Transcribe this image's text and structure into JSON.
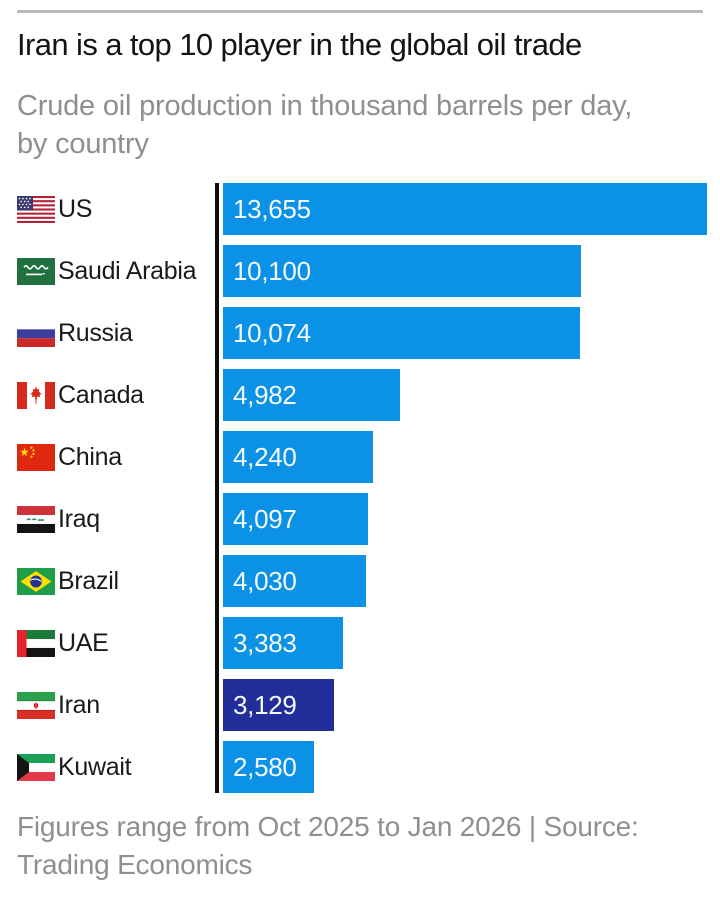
{
  "page": {
    "title": "Iran is a top 10 player in the global oil trade",
    "subtitle_lines": [
      "Crude oil production in thousand barrels per day,",
      "by country"
    ],
    "subtitle": "Crude oil production in thousand barrels per day, by country",
    "footer_lines": [
      "Figures range from Oct 2025 to Jan 2026 | Source:",
      "Trading Economics"
    ],
    "footer": "Figures range from Oct 2025 to Jan 2026 | Source: Trading Economics"
  },
  "colors": {
    "bar_blue": "#0b91e6",
    "highlight_navy": "#212d98",
    "axis_black": "#0d0d0d",
    "label_text": "#1a1a1a",
    "value_text": "#f4faff",
    "muted_text": "#8f8f8f",
    "rule_gray": "#b9b9b9",
    "background": "#ffffff"
  },
  "chart_data": {
    "type": "bar",
    "orientation": "horizontal",
    "title": "Iran is a top 10 player in the global oil trade",
    "subtitle": "Crude oil production in thousand barrels per day, by country",
    "xlabel": "",
    "ylabel": "",
    "xlim": [
      0,
      13655
    ],
    "grid": false,
    "legend": false,
    "value_labels_inside_bars": true,
    "categories": [
      "US",
      "Saudi Arabia",
      "Russia",
      "Canada",
      "China",
      "Iraq",
      "Brazil",
      "UAE",
      "Iran",
      "Kuwait"
    ],
    "values": [
      13655,
      10100,
      10074,
      4982,
      4240,
      4097,
      4030,
      3383,
      3129,
      2580
    ],
    "value_labels": [
      "13,655",
      "10,100",
      "10,074",
      "4,982",
      "4,240",
      "4,097",
      "4,030",
      "3,383",
      "3,129",
      "2,580"
    ],
    "flags": [
      "us-flag",
      "saudi-arabia-flag",
      "russia-flag",
      "canada-flag",
      "china-flag",
      "iraq-flag",
      "brazil-flag",
      "uae-flag",
      "iran-flag",
      "kuwait-flag"
    ],
    "highlighted_category": "Iran",
    "source_note": "Figures range from Oct 2025 to Jan 2026 | Source: Trading Economics"
  }
}
